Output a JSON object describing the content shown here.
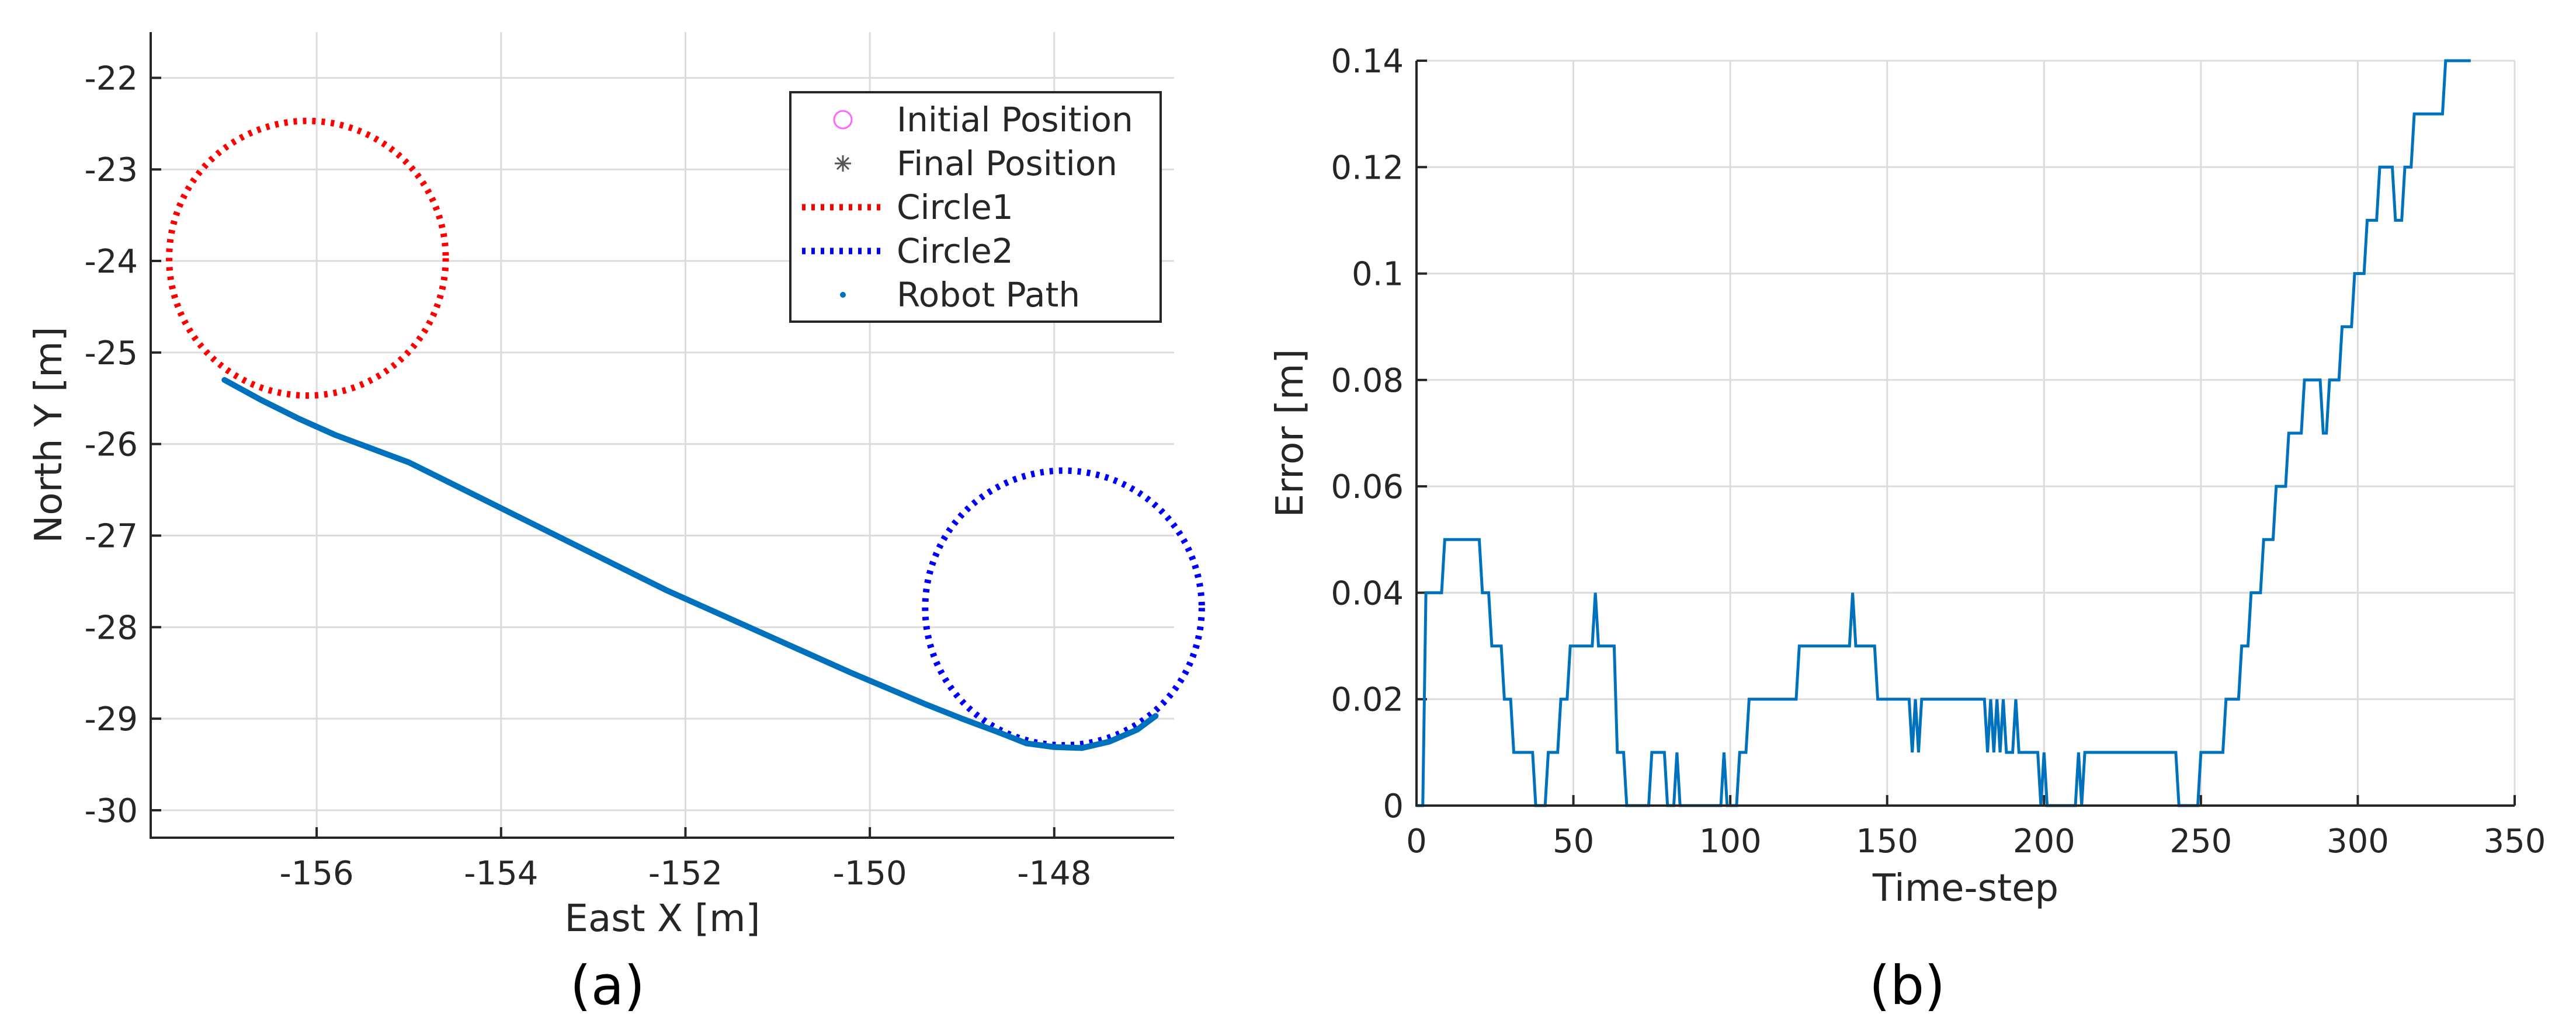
{
  "chart_data": [
    {
      "panel_label": "(a)",
      "type": "line",
      "xlabel": "East X [m]",
      "ylabel": "North Y [m]",
      "xlim": [
        -157.8,
        -146.7
      ],
      "ylim": [
        -30.3,
        -21.5
      ],
      "xticks": [
        -156,
        -154,
        -152,
        -150,
        -148
      ],
      "xtick_labels": [
        "-156",
        "-154",
        "-152",
        "-150",
        "-148"
      ],
      "yticks": [
        -22,
        -23,
        -24,
        -25,
        -26,
        -27,
        -28,
        -29,
        -30
      ],
      "ytick_labels": [
        "-22",
        "-23",
        "-24",
        "-25",
        "-26",
        "-27",
        "-28",
        "-29",
        "-30"
      ],
      "grid": true,
      "legend_position": "top-right",
      "legend": [
        {
          "label": "Initial Position",
          "marker": "circle",
          "color": "#ff66ff"
        },
        {
          "label": "Final Position",
          "marker": "asterisk",
          "color": "#555555"
        },
        {
          "label": "Circle1",
          "line": "dotted",
          "color": "#ff0000"
        },
        {
          "label": "Circle2",
          "line": "dotted",
          "color": "#0000ff"
        },
        {
          "label": "Robot Path",
          "marker": "dot",
          "color": "#0072bd"
        }
      ],
      "circles": [
        {
          "name": "Circle1",
          "center": [
            -156.1,
            -23.97
          ],
          "radius": 1.5,
          "color": "#ff0000"
        },
        {
          "name": "Circle2",
          "center": [
            -147.9,
            -27.79
          ],
          "radius": 1.5,
          "color": "#0000ff"
        }
      ],
      "series": [
        {
          "name": "Robot Path",
          "color": "#0072bd",
          "x": [
            -157.0,
            -156.6,
            -156.2,
            -155.8,
            -155.4,
            -155.0,
            -154.6,
            -154.2,
            -153.8,
            -153.4,
            -153.0,
            -152.6,
            -152.2,
            -151.8,
            -151.4,
            -151.0,
            -150.6,
            -150.2,
            -149.8,
            -149.4,
            -149.0,
            -148.6,
            -148.3,
            -148.0,
            -147.7,
            -147.4,
            -147.1,
            -146.9
          ],
          "y": [
            -25.3,
            -25.52,
            -25.72,
            -25.9,
            -26.05,
            -26.2,
            -26.4,
            -26.6,
            -26.8,
            -27.0,
            -27.2,
            -27.4,
            -27.6,
            -27.78,
            -27.96,
            -28.14,
            -28.32,
            -28.5,
            -28.67,
            -28.84,
            -29.0,
            -29.15,
            -29.27,
            -29.31,
            -29.32,
            -29.25,
            -29.12,
            -28.97
          ]
        }
      ]
    },
    {
      "panel_label": "(b)",
      "type": "line",
      "xlabel": "Time-step",
      "ylabel": "Error [m]",
      "xlim": [
        0,
        350
      ],
      "ylim": [
        0,
        0.14
      ],
      "xticks": [
        0,
        50,
        100,
        150,
        200,
        250,
        300,
        350
      ],
      "xtick_labels": [
        "0",
        "50",
        "100",
        "150",
        "200",
        "250",
        "300",
        "350"
      ],
      "yticks": [
        0,
        0.02,
        0.04,
        0.06,
        0.08,
        0.1,
        0.12,
        0.14
      ],
      "ytick_labels": [
        "0",
        "0.02",
        "0.04",
        "0.06",
        "0.08",
        "0.1",
        "0.12",
        "0.14"
      ],
      "grid": true,
      "series": [
        {
          "name": "Error",
          "color": "#0072bd",
          "x": [
            0,
            2,
            3,
            8,
            9,
            20,
            21,
            23,
            24,
            27,
            28,
            30,
            31,
            33,
            34,
            37,
            38,
            41,
            42,
            45,
            46,
            48,
            49,
            52,
            53,
            56,
            57,
            58,
            59,
            63,
            64,
            66,
            67,
            68,
            69,
            74,
            75,
            79,
            80,
            82,
            83,
            84,
            85,
            97,
            98,
            99,
            100,
            102,
            103,
            105,
            106,
            121,
            122,
            138,
            139,
            140,
            141,
            146,
            147,
            157,
            158,
            159,
            160,
            161,
            162,
            163,
            164,
            181,
            182,
            183,
            184,
            185,
            186,
            187,
            188,
            190,
            191,
            192,
            193,
            198,
            199,
            200,
            201,
            210,
            211,
            212,
            213,
            242,
            243,
            249,
            250,
            257,
            258,
            262,
            263,
            265,
            266,
            269,
            270,
            273,
            274,
            277,
            278,
            282,
            283,
            288,
            289,
            290,
            291,
            294,
            295,
            298,
            299,
            302,
            303,
            306,
            307,
            311,
            312,
            314,
            315,
            317,
            318,
            327,
            328,
            331,
            332,
            336
          ],
          "y": [
            0,
            0,
            0.04,
            0.04,
            0.05,
            0.05,
            0.04,
            0.04,
            0.03,
            0.03,
            0.02,
            0.02,
            0.01,
            0.01,
            0.01,
            0.01,
            0,
            0,
            0.01,
            0.01,
            0.02,
            0.02,
            0.03,
            0.03,
            0.03,
            0.03,
            0.04,
            0.03,
            0.03,
            0.03,
            0.01,
            0.01,
            0,
            0,
            0,
            0,
            0.01,
            0.01,
            0,
            0,
            0.01,
            0,
            0,
            0,
            0.01,
            0,
            0,
            0,
            0.01,
            0.01,
            0.02,
            0.02,
            0.03,
            0.03,
            0.04,
            0.03,
            0.03,
            0.03,
            0.02,
            0.02,
            0.01,
            0.02,
            0.01,
            0.02,
            0.02,
            0.02,
            0.02,
            0.02,
            0.01,
            0.02,
            0.01,
            0.02,
            0.01,
            0.02,
            0.01,
            0.01,
            0.02,
            0.01,
            0.01,
            0.01,
            0,
            0.01,
            0,
            0,
            0.01,
            0,
            0.01,
            0.01,
            0,
            0,
            0.01,
            0.01,
            0.02,
            0.02,
            0.03,
            0.03,
            0.04,
            0.04,
            0.05,
            0.05,
            0.06,
            0.06,
            0.07,
            0.07,
            0.08,
            0.08,
            0.07,
            0.07,
            0.08,
            0.08,
            0.09,
            0.09,
            0.1,
            0.1,
            0.11,
            0.11,
            0.12,
            0.12,
            0.11,
            0.11,
            0.12,
            0.12,
            0.13,
            0.13,
            0.14,
            0.14,
            0.14,
            0.14
          ]
        }
      ]
    }
  ]
}
